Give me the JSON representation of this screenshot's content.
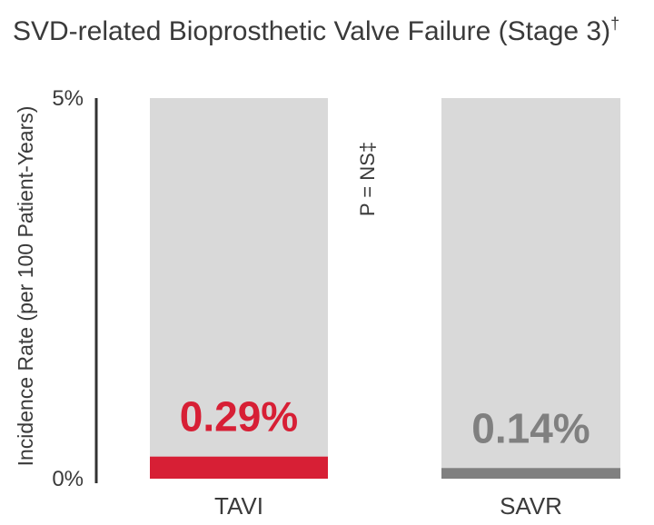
{
  "chart_data": {
    "type": "bar",
    "title": "SVD-related Bioprosthetic Valve  Failure (Stage 3)",
    "title_superscript": "†",
    "ylabel": "Incidence Rate (per 100 Patient-Years)",
    "ylim": [
      0,
      5
    ],
    "y_ticks": [
      {
        "value": 0,
        "label": "0%"
      },
      {
        "value": 5,
        "label": "5%"
      }
    ],
    "categories": [
      "TAVI",
      "SAVR"
    ],
    "values": [
      0.29,
      0.14
    ],
    "value_labels": [
      "0.29%",
      "0.14%"
    ],
    "annotation": "P = NS‡",
    "grid": false,
    "colors": {
      "background_column": "#d9d9d9",
      "tavi": "#d71f35",
      "savr": "#808080",
      "axis": "#333333",
      "text": "#3a3a3a"
    }
  }
}
